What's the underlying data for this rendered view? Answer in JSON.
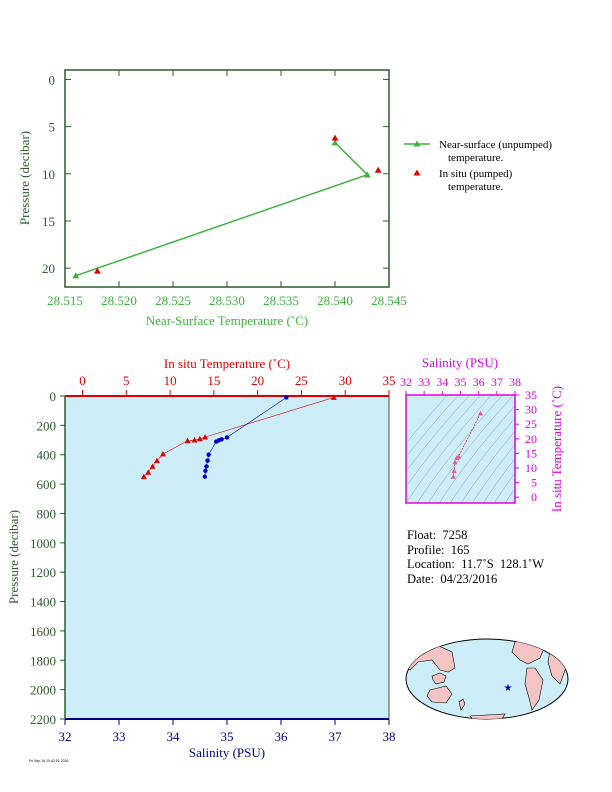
{
  "colors": {
    "green": "#3bb33b",
    "dark_green": "#2f5a2f",
    "red": "#dd0000",
    "blue": "#0000cc",
    "navy": "#00008b",
    "magenta": "#dd00dd",
    "panel_bg": "#cdeef8",
    "land": "#f4c4c4"
  },
  "chart_data": [
    {
      "type": "line",
      "xlabel": "Near-Surface Temperature (˚C)",
      "ylabel": "Pressure (decibar)",
      "xlim": [
        28.515,
        28.545
      ],
      "ylim": [
        22,
        -1
      ],
      "x_ticks": [
        "28.515",
        "28.520",
        "28.525",
        "28.530",
        "28.535",
        "28.540",
        "28.545"
      ],
      "y_ticks": [
        "0",
        "5",
        "10",
        "15",
        "20"
      ],
      "legend_placement": "right",
      "series": [
        {
          "name": "Near-surface (unpumped) temperature.",
          "marker": "triangle",
          "points": [
            [
              28.54,
              6.7
            ],
            [
              28.543,
              10.1
            ],
            [
              28.516,
              20.8
            ]
          ]
        },
        {
          "name": "In situ (pumped) temperature.",
          "marker": "triangle",
          "points": [
            [
              28.54,
              6.2
            ],
            [
              28.544,
              9.6
            ],
            [
              28.518,
              20.3
            ]
          ]
        }
      ],
      "legend": {
        "unpumped_line1": "Near-surface (unpumped)",
        "unpumped_line2": "temperature.",
        "pumped_line1": "In situ (pumped)",
        "pumped_line2": "temperature."
      }
    },
    {
      "type": "line",
      "top_xlabel": "In situ Temperature (˚C)",
      "bottom_xlabel": "Salinity (PSU)",
      "ylabel": "Pressure (decibar)",
      "temperature_xlim": [
        -2,
        35
      ],
      "salinity_xlim": [
        32,
        38
      ],
      "ylim": [
        2200,
        0
      ],
      "temperature_ticks": [
        "0",
        "5",
        "10",
        "15",
        "20",
        "25",
        "30",
        "35"
      ],
      "salinity_ticks": [
        "32",
        "33",
        "34",
        "35",
        "36",
        "37",
        "38"
      ],
      "pressure_ticks": [
        "0",
        "200",
        "400",
        "600",
        "800",
        "1000",
        "1200",
        "1400",
        "1600",
        "1800",
        "2000",
        "2200"
      ],
      "series": [
        {
          "name": "In situ Temperature",
          "marker": "triangle",
          "points": [
            [
              28.7,
              10
            ],
            [
              9.2,
              395
            ],
            [
              8.5,
              440
            ],
            [
              8.0,
              480
            ],
            [
              7.5,
              520
            ],
            [
              7.0,
              550
            ],
            [
              12.0,
              305
            ],
            [
              12.8,
              300
            ],
            [
              13.4,
              292
            ],
            [
              14.0,
              280
            ]
          ]
        },
        {
          "name": "Salinity",
          "marker": "dot",
          "points": [
            [
              36.1,
              10
            ],
            [
              35.0,
              282
            ],
            [
              34.9,
              295
            ],
            [
              34.85,
              302
            ],
            [
              34.8,
              310
            ],
            [
              34.66,
              400
            ],
            [
              34.64,
              440
            ],
            [
              34.62,
              480
            ],
            [
              34.6,
              510
            ],
            [
              34.59,
              550
            ]
          ]
        }
      ]
    },
    {
      "type": "scatter",
      "top_xlabel": "Salinity (PSU)",
      "ylabel": "In situ Temperature (˚C)",
      "xlim": [
        32,
        38
      ],
      "ylim": [
        -2,
        35
      ],
      "x_ticks": [
        "32",
        "33",
        "34",
        "35",
        "36",
        "37",
        "38"
      ],
      "y_ticks": [
        "0",
        "5",
        "10",
        "15",
        "20",
        "25",
        "30",
        "35"
      ],
      "points": [
        [
          36.1,
          28.7
        ],
        [
          34.6,
          7.0
        ],
        [
          34.65,
          9.0
        ],
        [
          34.7,
          12.0
        ],
        [
          34.8,
          13.5
        ],
        [
          34.9,
          14.0
        ]
      ]
    }
  ],
  "info": {
    "float": "Float:  7258",
    "profile": "Profile:  165",
    "location": "Location:  11.7˚S  128.1˚W",
    "date": "Date:  04/23/2016"
  },
  "footer": "Fri Sep 16 10:42:51 2016"
}
